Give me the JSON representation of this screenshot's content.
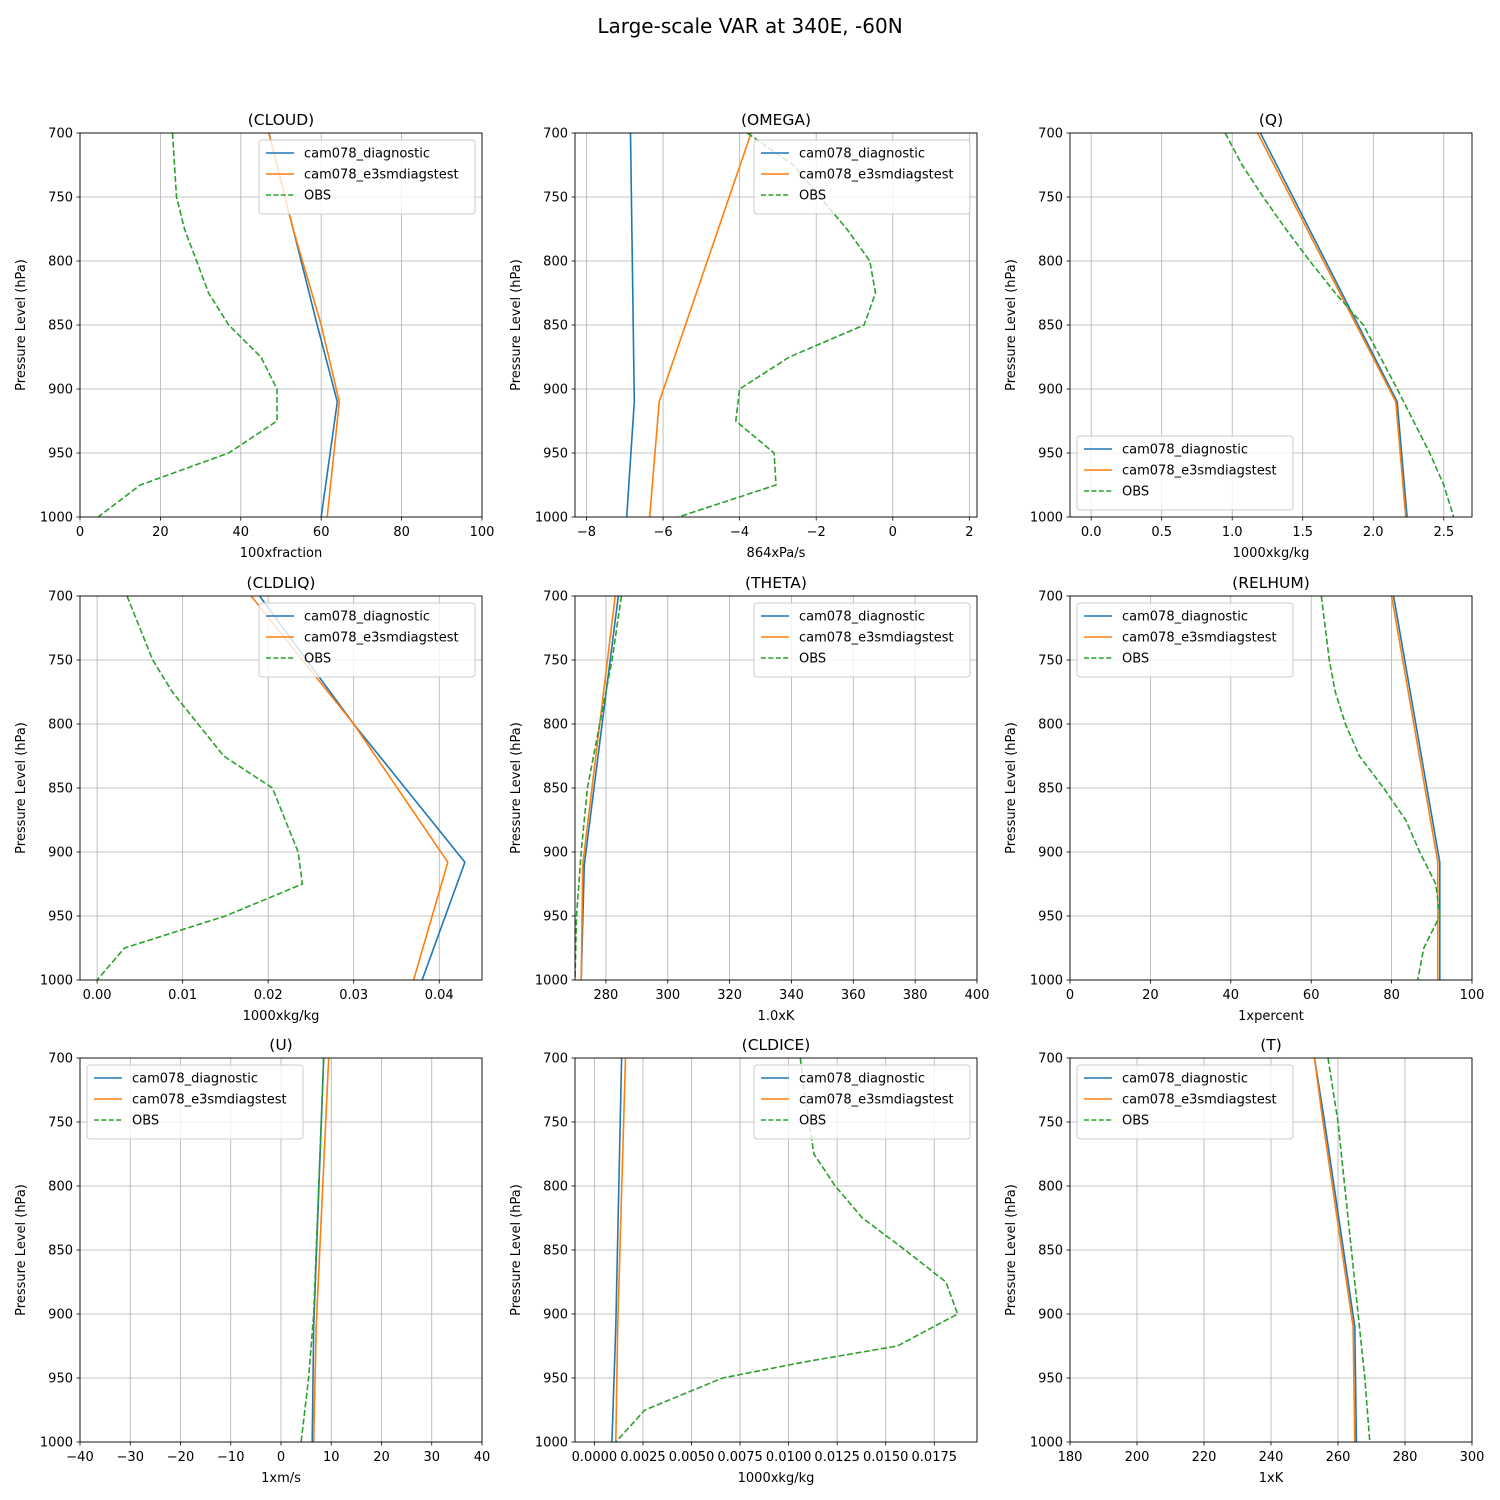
{
  "figure": {
    "title": "Large-scale VAR at 340E, -60N",
    "ylabel": "Pressure Level (hPa)"
  },
  "colors": {
    "cam078_diagnostic": "#1f77b4",
    "cam078_e3smdiagstest": "#ff7f0e",
    "OBS": "#2ca02c",
    "grid": "#b0b0b0"
  },
  "chart_data": [
    {
      "type": "line",
      "title": "(CLOUD)",
      "xlabel": "100xfraction",
      "ylabel": "Pressure Level (hPa)",
      "xlim": [
        0,
        100
      ],
      "xticks": [
        0,
        20,
        40,
        60,
        80,
        100
      ],
      "xtick_labels": [
        "0",
        "20",
        "40",
        "60",
        "80",
        "100"
      ],
      "ylim": [
        1000,
        700
      ],
      "yticks": [
        700,
        750,
        800,
        850,
        900,
        950,
        1000
      ],
      "legend": "upper right",
      "grid": true,
      "series": [
        {
          "name": "cam078_diagnostic",
          "style": "solid",
          "x": [
            47,
            53,
            59,
            64,
            60
          ],
          "y": [
            700,
            775,
            850,
            910,
            1000
          ]
        },
        {
          "name": "cam078_e3smdiagstest",
          "style": "solid",
          "x": [
            47,
            53,
            60,
            64.5,
            61.5
          ],
          "y": [
            700,
            775,
            850,
            910,
            1000
          ]
        },
        {
          "name": "OBS",
          "style": "dashed",
          "x": [
            23,
            23.5,
            24,
            26,
            29,
            32,
            37,
            45,
            49,
            49,
            37,
            15,
            4.5
          ],
          "y": [
            700,
            725,
            750,
            775,
            800,
            825,
            850,
            875,
            900,
            925,
            950,
            975,
            1000
          ]
        }
      ]
    },
    {
      "type": "line",
      "title": "(OMEGA)",
      "xlabel": "864xPa/s",
      "ylabel": "Pressure Level (hPa)",
      "xlim": [
        -8.3,
        2.2
      ],
      "xticks": [
        -8,
        -6,
        -4,
        -2,
        0,
        2
      ],
      "xtick_labels": [
        "−8",
        "−6",
        "−4",
        "−2",
        "0",
        "2"
      ],
      "ylim": [
        1000,
        700
      ],
      "yticks": [
        700,
        750,
        800,
        850,
        900,
        950,
        1000
      ],
      "legend": "upper right",
      "grid": true,
      "series": [
        {
          "name": "cam078_diagnostic",
          "style": "solid",
          "x": [
            -6.85,
            -6.75,
            -6.95
          ],
          "y": [
            700,
            910,
            1000
          ]
        },
        {
          "name": "cam078_e3smdiagstest",
          "style": "solid",
          "x": [
            -3.7,
            -6.1,
            -6.35
          ],
          "y": [
            700,
            910,
            1000
          ]
        },
        {
          "name": "OBS",
          "style": "dashed",
          "x": [
            -3.8,
            -2.6,
            -1.2,
            -0.6,
            -0.45,
            -0.75,
            -2.7,
            -4.0,
            -4.1,
            -3.1,
            -3.05,
            -5.6
          ],
          "y": [
            700,
            725,
            775,
            800,
            825,
            850,
            875,
            900,
            925,
            950,
            975,
            1000
          ]
        }
      ]
    },
    {
      "type": "line",
      "title": "(Q)",
      "xlabel": "1000xkg/kg",
      "ylabel": "Pressure Level (hPa)",
      "xlim": [
        -0.15,
        2.7
      ],
      "xticks": [
        0,
        0.5,
        1.0,
        1.5,
        2.0,
        2.5
      ],
      "xtick_labels": [
        "0.0",
        "0.5",
        "1.0",
        "1.5",
        "2.0",
        "2.5"
      ],
      "ylim": [
        1000,
        700
      ],
      "yticks": [
        700,
        750,
        800,
        850,
        900,
        950,
        1000
      ],
      "legend": "lower left",
      "grid": true,
      "series": [
        {
          "name": "cam078_diagnostic",
          "style": "solid",
          "x": [
            1.2,
            2.17,
            2.24
          ],
          "y": [
            700,
            910,
            1000
          ]
        },
        {
          "name": "cam078_e3smdiagstest",
          "style": "solid",
          "x": [
            1.18,
            2.16,
            2.23
          ],
          "y": [
            700,
            910,
            1000
          ]
        },
        {
          "name": "OBS",
          "style": "dashed",
          "x": [
            0.95,
            1.07,
            1.22,
            1.38,
            1.55,
            1.73,
            1.93,
            2.17,
            2.4,
            2.5,
            2.57
          ],
          "y": [
            700,
            725,
            750,
            775,
            800,
            825,
            850,
            900,
            950,
            975,
            1000
          ]
        }
      ]
    },
    {
      "type": "line",
      "title": "(CLDLIQ)",
      "xlabel": "1000xkg/kg",
      "ylabel": "Pressure Level (hPa)",
      "xlim": [
        -0.002,
        0.045
      ],
      "xticks": [
        0,
        0.01,
        0.02,
        0.03,
        0.04
      ],
      "xtick_labels": [
        "0.00",
        "0.01",
        "0.02",
        "0.03",
        "0.04"
      ],
      "ylim": [
        1000,
        700
      ],
      "yticks": [
        700,
        750,
        800,
        850,
        900,
        950,
        1000
      ],
      "legend": "upper right",
      "grid": true,
      "series": [
        {
          "name": "cam078_diagnostic",
          "style": "solid",
          "x": [
            0.019,
            0.03,
            0.043,
            0.038
          ],
          "y": [
            700,
            800,
            908,
            1000
          ]
        },
        {
          "name": "cam078_e3smdiagstest",
          "style": "solid",
          "x": [
            0.018,
            0.03,
            0.041,
            0.037
          ],
          "y": [
            700,
            800,
            908,
            1000
          ]
        },
        {
          "name": "OBS",
          "style": "dashed",
          "x": [
            0.0035,
            0.0065,
            0.0088,
            0.0118,
            0.0148,
            0.0205,
            0.0235,
            0.024,
            0.015,
            0.0032,
            0.0
          ],
          "y": [
            700,
            750,
            775,
            800,
            825,
            850,
            900,
            925,
            950,
            975,
            1000
          ]
        }
      ]
    },
    {
      "type": "line",
      "title": "(THETA)",
      "xlabel": "1.0xK",
      "ylabel": "Pressure Level (hPa)",
      "xlim": [
        270,
        400
      ],
      "xticks": [
        280,
        300,
        320,
        340,
        360,
        380,
        400
      ],
      "xtick_labels": [
        "280",
        "300",
        "320",
        "340",
        "360",
        "380",
        "400"
      ],
      "ylim": [
        1000,
        700
      ],
      "yticks": [
        700,
        750,
        800,
        850,
        900,
        950,
        1000
      ],
      "legend": "upper right",
      "grid": true,
      "series": [
        {
          "name": "cam078_diagnostic",
          "style": "solid",
          "x": [
            284,
            273,
            272
          ],
          "y": [
            700,
            910,
            1000
          ]
        },
        {
          "name": "cam078_e3smdiagstest",
          "style": "solid",
          "x": [
            283,
            272.5,
            272
          ],
          "y": [
            700,
            910,
            1000
          ]
        },
        {
          "name": "OBS",
          "style": "dashed",
          "x": [
            285,
            282,
            278,
            274,
            272,
            270.5,
            270
          ],
          "y": [
            700,
            750,
            800,
            850,
            900,
            950,
            1000
          ]
        }
      ]
    },
    {
      "type": "line",
      "title": "(RELHUM)",
      "xlabel": "1xpercent",
      "ylabel": "Pressure Level (hPa)",
      "xlim": [
        0,
        100
      ],
      "xticks": [
        0,
        20,
        40,
        60,
        80,
        100
      ],
      "xtick_labels": [
        "0",
        "20",
        "40",
        "60",
        "80",
        "100"
      ],
      "ylim": [
        1000,
        700
      ],
      "yticks": [
        700,
        750,
        800,
        850,
        900,
        950,
        1000
      ],
      "legend": "upper left",
      "grid": true,
      "series": [
        {
          "name": "cam078_diagnostic",
          "style": "solid",
          "x": [
            80.5,
            92,
            92
          ],
          "y": [
            700,
            908,
            1000
          ]
        },
        {
          "name": "cam078_e3smdiagstest",
          "style": "solid",
          "x": [
            80,
            91.5,
            91.5
          ],
          "y": [
            700,
            908,
            1000
          ]
        },
        {
          "name": "OBS",
          "style": "dashed",
          "x": [
            62.5,
            63.5,
            64.5,
            66,
            68.5,
            72,
            78,
            83.5,
            87,
            91,
            92,
            88,
            86.5
          ],
          "y": [
            700,
            725,
            750,
            775,
            800,
            825,
            850,
            875,
            900,
            925,
            950,
            975,
            1000
          ]
        }
      ]
    },
    {
      "type": "line",
      "title": "(U)",
      "xlabel": "1xm/s",
      "ylabel": "Pressure Level (hPa)",
      "xlim": [
        -40,
        40
      ],
      "xticks": [
        -40,
        -30,
        -20,
        -10,
        0,
        10,
        20,
        30,
        40
      ],
      "xtick_labels": [
        "−40",
        "−30",
        "−20",
        "−10",
        "0",
        "10",
        "20",
        "30",
        "40"
      ],
      "ylim": [
        1000,
        700
      ],
      "yticks": [
        700,
        750,
        800,
        850,
        900,
        950,
        1000
      ],
      "legend": "upper left",
      "grid": true,
      "series": [
        {
          "name": "cam078_diagnostic",
          "style": "solid",
          "x": [
            8.5,
            6.5,
            6.2
          ],
          "y": [
            700,
            910,
            1000
          ]
        },
        {
          "name": "cam078_e3smdiagstest",
          "style": "solid",
          "x": [
            9.5,
            7,
            6.5
          ],
          "y": [
            700,
            910,
            1000
          ]
        },
        {
          "name": "OBS",
          "style": "dashed",
          "x": [
            8.5,
            7.5,
            6.5,
            5.5,
            4
          ],
          "y": [
            700,
            800,
            900,
            950,
            1000
          ]
        }
      ]
    },
    {
      "type": "line",
      "title": "(CLDICE)",
      "xlabel": "1000xkg/kg",
      "ylabel": "Pressure Level (hPa)",
      "xlim": [
        -0.001,
        0.0197
      ],
      "xticks": [
        0,
        0.0025,
        0.005,
        0.0075,
        0.01,
        0.0125,
        0.015,
        0.0175
      ],
      "xtick_labels": [
        "0.0000",
        "0.0025",
        "0.0050",
        "0.0075",
        "0.0100",
        "0.0125",
        "0.0150",
        "0.0175"
      ],
      "ylim": [
        1000,
        700
      ],
      "yticks": [
        700,
        750,
        800,
        850,
        900,
        950,
        1000
      ],
      "legend": "upper right",
      "grid": true,
      "series": [
        {
          "name": "cam078_diagnostic",
          "style": "solid",
          "x": [
            0.0014,
            0.0011,
            0.0009
          ],
          "y": [
            700,
            910,
            1000
          ]
        },
        {
          "name": "cam078_e3smdiagstest",
          "style": "solid",
          "x": [
            0.0016,
            0.0012,
            0.0011
          ],
          "y": [
            700,
            910,
            1000
          ]
        },
        {
          "name": "OBS",
          "style": "dashed",
          "x": [
            0.0106,
            0.0108,
            0.0113,
            0.0124,
            0.0138,
            0.016,
            0.0181,
            0.0187,
            0.0156,
            0.0108,
            0.0066,
            0.0026,
            0.0011
          ],
          "y": [
            700,
            725,
            775,
            800,
            825,
            850,
            875,
            900,
            925,
            937.5,
            950,
            975,
            1000
          ]
        }
      ]
    },
    {
      "type": "line",
      "title": "(T)",
      "xlabel": "1xK",
      "ylabel": "Pressure Level (hPa)",
      "xlim": [
        180,
        300
      ],
      "xticks": [
        180,
        200,
        220,
        240,
        260,
        280,
        300
      ],
      "xtick_labels": [
        "180",
        "200",
        "220",
        "240",
        "260",
        "280",
        "300"
      ],
      "ylim": [
        1000,
        700
      ],
      "yticks": [
        700,
        750,
        800,
        850,
        900,
        950,
        1000
      ],
      "legend": "upper left",
      "grid": true,
      "series": [
        {
          "name": "cam078_diagnostic",
          "style": "solid",
          "x": [
            253,
            256,
            265,
            265.5
          ],
          "y": [
            700,
            750,
            910,
            1000
          ]
        },
        {
          "name": "cam078_e3smdiagstest",
          "style": "solid",
          "x": [
            253,
            255.5,
            264.5,
            265
          ],
          "y": [
            700,
            750,
            910,
            1000
          ]
        },
        {
          "name": "OBS",
          "style": "dashed",
          "x": [
            257,
            260,
            262,
            264,
            266,
            268,
            269.5
          ],
          "y": [
            700,
            750,
            800,
            850,
            900,
            950,
            1000
          ]
        }
      ]
    }
  ]
}
